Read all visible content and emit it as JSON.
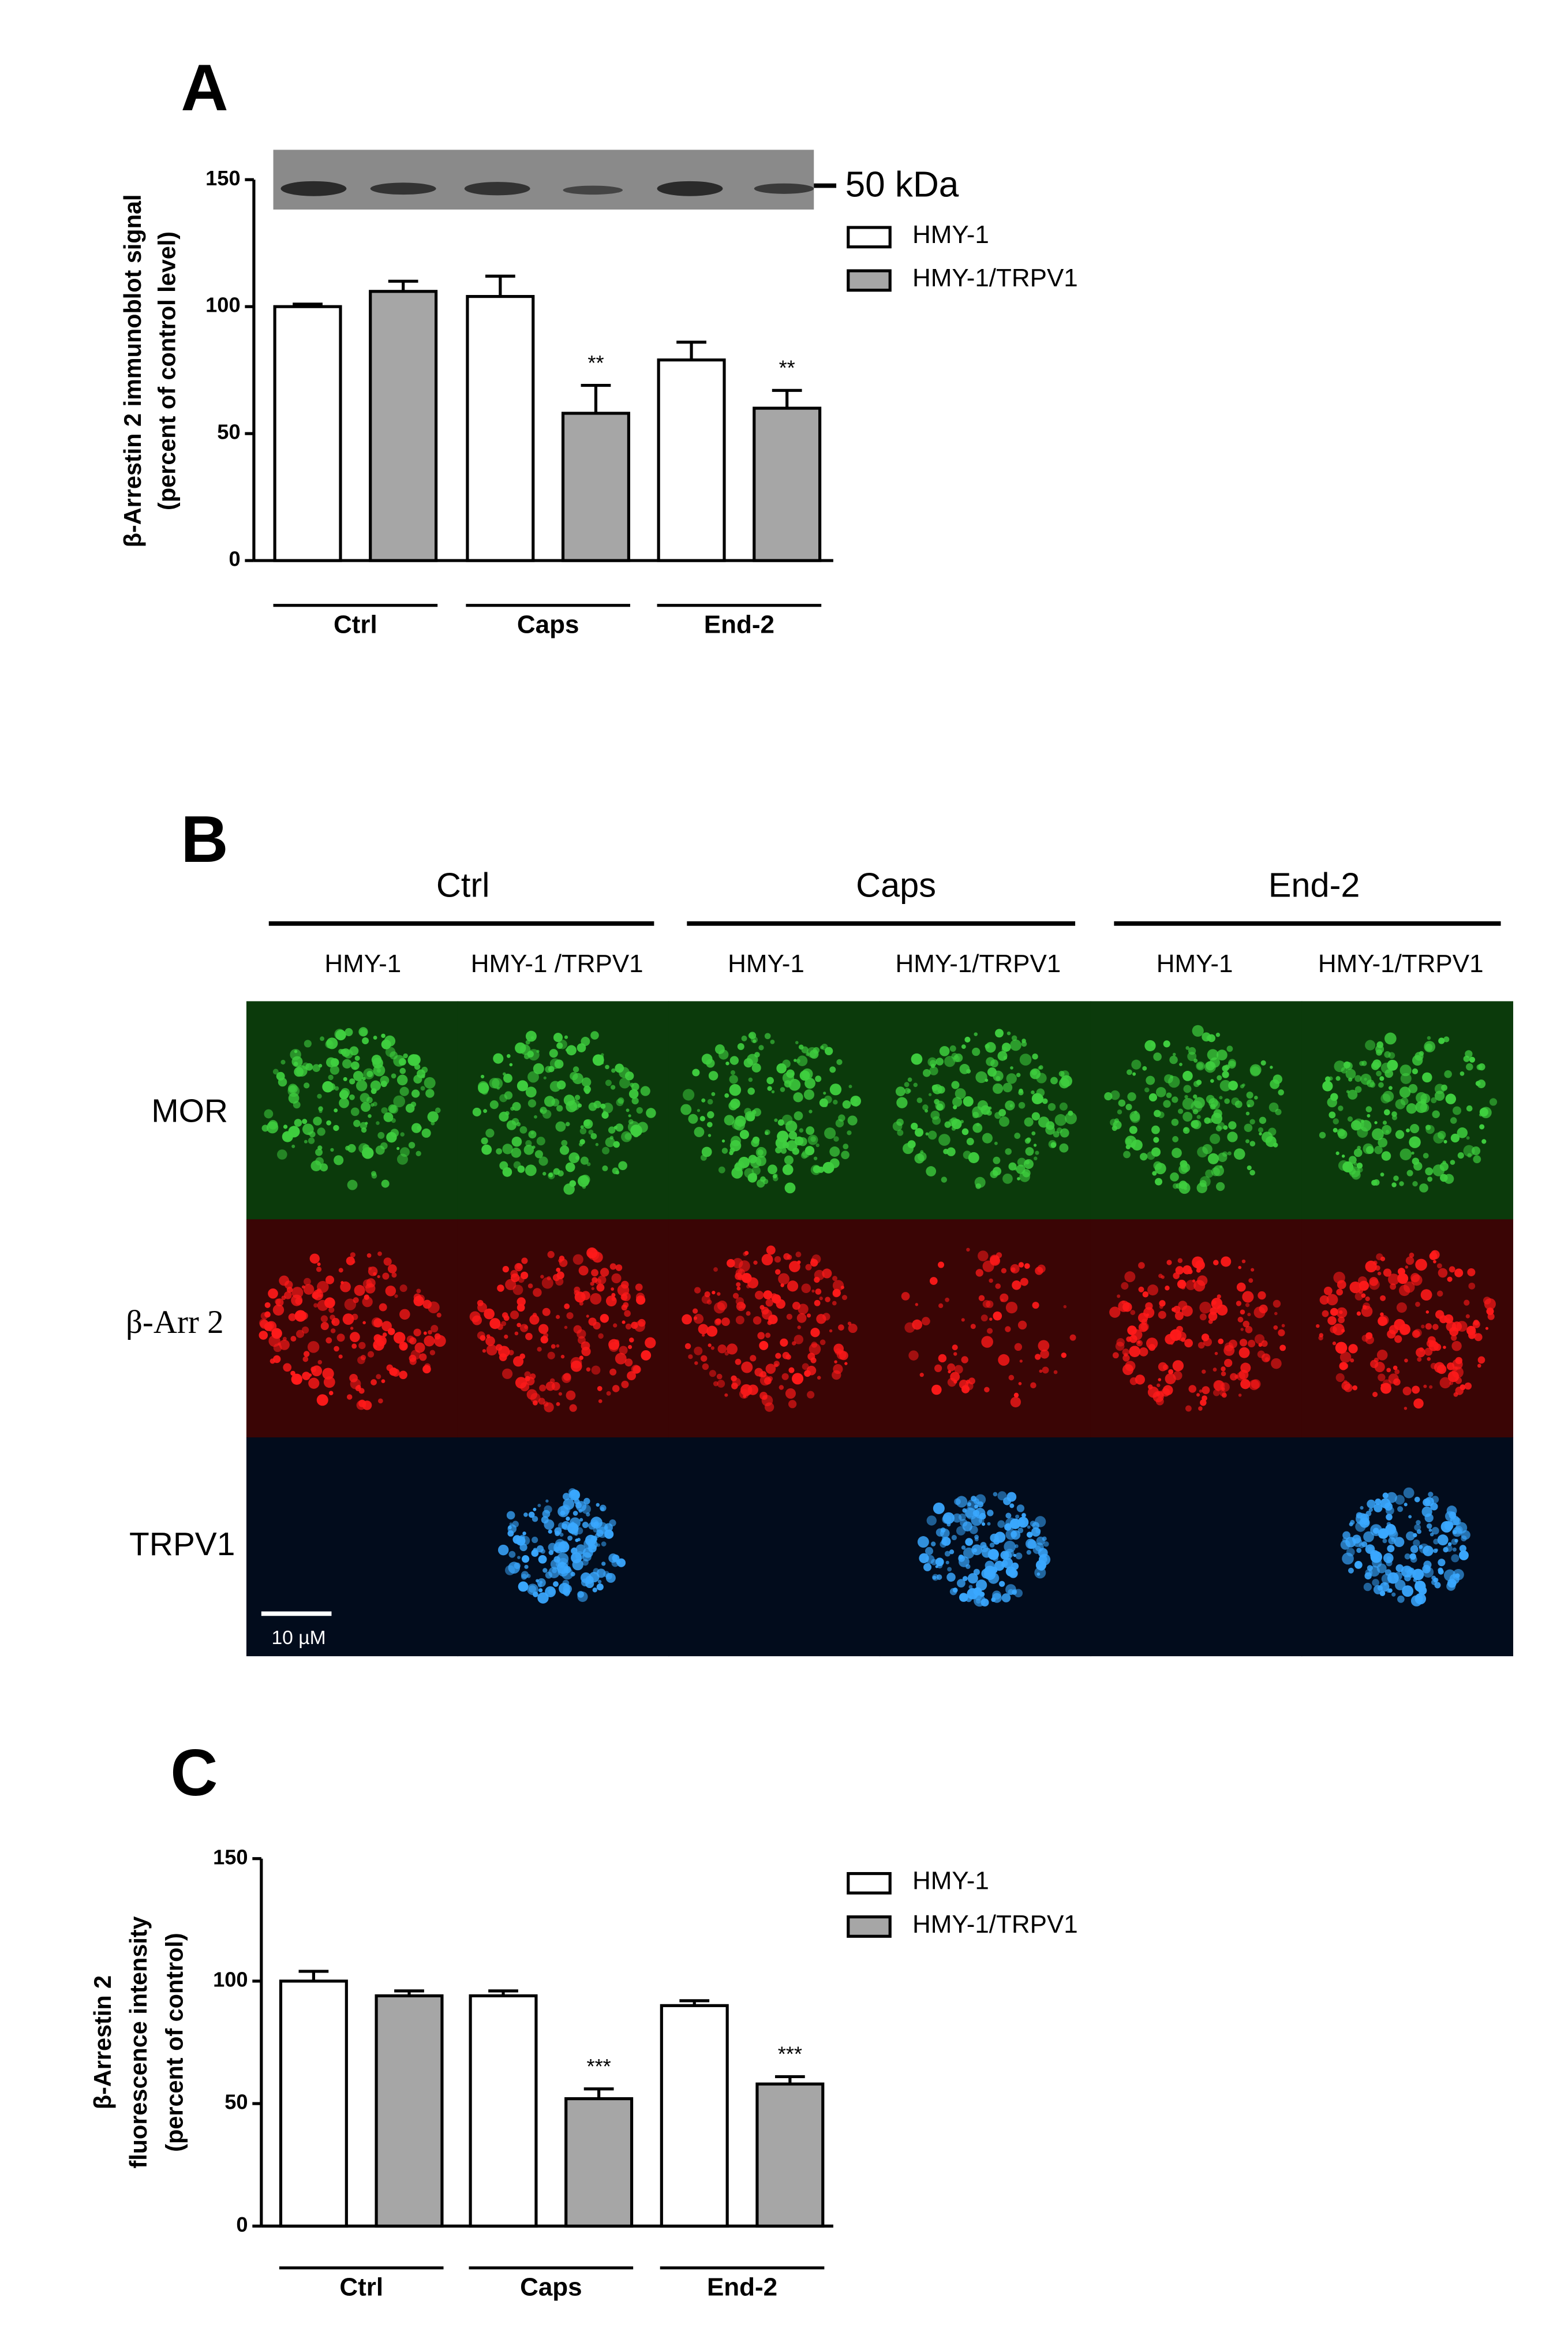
{
  "chart_data": [
    {
      "type": "bar",
      "panel_label": "A",
      "blot_label": "50 kDa",
      "y_label": [
        "β-Arrestin 2 immunoblot signal",
        "(percent of control level)"
      ],
      "categories": [
        "Ctrl",
        "Caps",
        "End-2"
      ],
      "series": [
        {
          "name": "HMY-1",
          "color": "#ffffff",
          "values": [
            100,
            104,
            79
          ],
          "errors": [
            1,
            8,
            7
          ],
          "significance": [
            null,
            null,
            null
          ]
        },
        {
          "name": "HMY-1/TRPV1",
          "color": "#a6a6a6",
          "values": [
            106,
            58,
            60
          ],
          "errors": [
            4,
            11,
            7
          ],
          "significance": [
            null,
            "**",
            "**"
          ]
        }
      ],
      "ylim": [
        0,
        150
      ],
      "yticks": [
        0,
        50,
        100,
        150
      ]
    },
    {
      "type": "bar",
      "panel_label": "C",
      "y_label": [
        "β-Arrestin 2",
        "fluorescence intensity",
        "(percent of control)"
      ],
      "categories": [
        "Ctrl",
        "Caps",
        "End-2"
      ],
      "series": [
        {
          "name": "HMY-1",
          "color": "#ffffff",
          "values": [
            100,
            94,
            90
          ],
          "errors": [
            4,
            2,
            2
          ],
          "significance": [
            null,
            null,
            null
          ]
        },
        {
          "name": "HMY-1/TRPV1",
          "color": "#a6a6a6",
          "values": [
            94,
            52,
            58
          ],
          "errors": [
            2,
            4,
            3
          ],
          "significance": [
            null,
            "***",
            "***"
          ]
        }
      ],
      "ylim": [
        0,
        150
      ],
      "yticks": [
        0,
        50,
        100,
        150
      ]
    }
  ],
  "panel_b": {
    "panel_label": "B",
    "groups": [
      "Ctrl",
      "Caps",
      "End-2"
    ],
    "columns": [
      "HMY-1",
      "HMY-1 /TRPV1",
      "HMY-1",
      "HMY-1/TRPV1",
      "HMY-1",
      "HMY-1/TRPV1"
    ],
    "rows": [
      "MOR",
      "β-Arr 2",
      "TRPV1"
    ],
    "scale_bar": "10 µM"
  }
}
